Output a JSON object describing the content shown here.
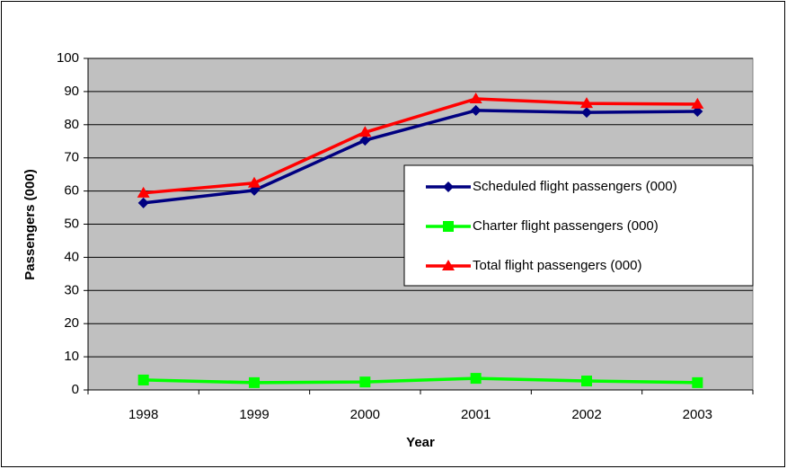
{
  "chart_data": {
    "type": "line",
    "x_label": "Year",
    "y_label": "Passengers (000)",
    "categories": [
      "1998",
      "1999",
      "2000",
      "2001",
      "2002",
      "2003"
    ],
    "series": [
      {
        "name": "Scheduled flight passengers (000)",
        "color": "#000080",
        "marker": "diamond",
        "values": [
          56.4,
          60.2,
          75.3,
          84.3,
          83.7,
          84.0
        ]
      },
      {
        "name": "Charter flight passengers (000)",
        "color": "#00ff00",
        "marker": "square",
        "values": [
          3.0,
          2.2,
          2.4,
          3.5,
          2.7,
          2.2
        ]
      },
      {
        "name": "Total flight passengers (000)",
        "color": "#ff0000",
        "marker": "triangle",
        "values": [
          59.4,
          62.4,
          77.7,
          87.8,
          86.4,
          86.2
        ]
      }
    ],
    "ylim": [
      0,
      100
    ],
    "yticks": [
      0,
      10,
      20,
      30,
      40,
      50,
      60,
      70,
      80,
      90,
      100
    ],
    "grid": true,
    "legend": "right"
  }
}
